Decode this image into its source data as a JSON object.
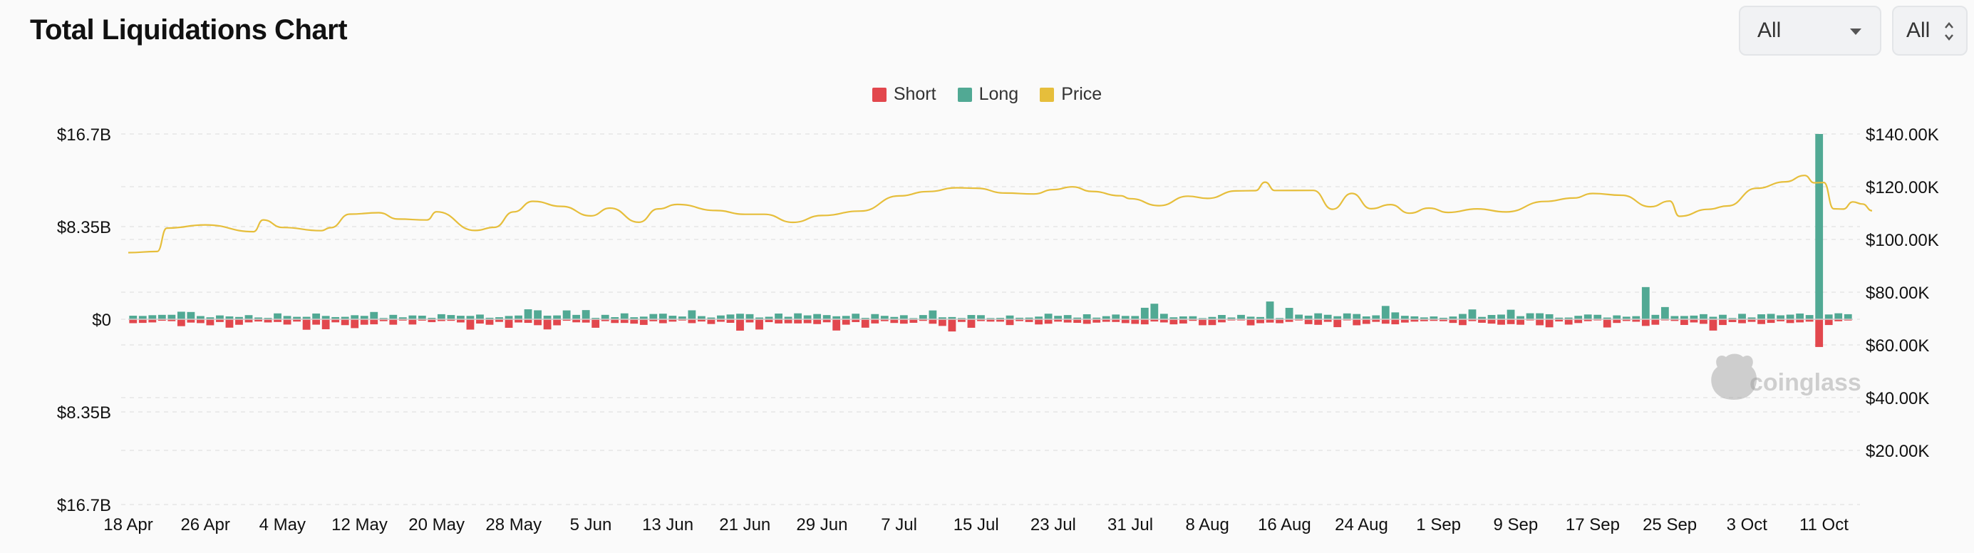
{
  "header": {
    "title": "Total Liquidations Chart",
    "select_exchange": "All",
    "select_range": "All"
  },
  "colors": {
    "short": "#e2474d",
    "long": "#51a994",
    "price": "#e6be3b",
    "grid": "#e6e6e6",
    "axis_text": "#111111"
  },
  "watermark": "coinglass",
  "chart_data": {
    "type": "bar",
    "title": "Total Liquidations Chart",
    "legend_position": "top-center",
    "grid": true,
    "series": [
      {
        "name": "Short",
        "color": "#e2474d",
        "axis": "left",
        "kind": "bar",
        "direction": "down"
      },
      {
        "name": "Long",
        "color": "#51a994",
        "axis": "left",
        "kind": "bar",
        "direction": "up"
      },
      {
        "name": "Price",
        "color": "#e6be3b",
        "axis": "right",
        "kind": "line"
      }
    ],
    "y_left": {
      "range": [
        -16.7,
        16.7
      ],
      "unit": "B",
      "ticks": [
        16.7,
        8.35,
        0,
        -8.35,
        -16.7
      ],
      "tick_labels": [
        "$16.7B",
        "$8.35B",
        "$0",
        "$8.35B",
        "$16.7B"
      ]
    },
    "y_right": {
      "range": [
        0,
        140000
      ],
      "ticks": [
        140000,
        120000,
        100000,
        80000,
        60000,
        40000,
        20000
      ],
      "tick_labels": [
        "$140.00K",
        "$120.00K",
        "$100.00K",
        "$80.00K",
        "$60.00K",
        "$40.00K",
        "$20.00K"
      ]
    },
    "x_tick_labels": [
      "18 Apr",
      "26 Apr",
      "4 May",
      "12 May",
      "20 May",
      "28 May",
      "5 Jun",
      "13 Jun",
      "21 Jun",
      "29 Jun",
      "7 Jul",
      "15 Jul",
      "23 Jul",
      "31 Jul",
      "8 Aug",
      "16 Aug",
      "24 Aug",
      "1 Sep",
      "9 Sep",
      "17 Sep",
      "25 Sep",
      "3 Oct",
      "11 Oct"
    ],
    "x_day_offsets": [
      0,
      8,
      16,
      24,
      32,
      40,
      48,
      56,
      64,
      72,
      80,
      88,
      96,
      104,
      112,
      120,
      128,
      136,
      144,
      152,
      160,
      168,
      176
    ],
    "total_days": 179,
    "notable_bars_billion": [
      {
        "date": "10 Oct",
        "long": 16.7,
        "short": 2.5
      },
      {
        "date": "22 Sep",
        "long": 2.9,
        "short": 0.6
      },
      {
        "date": "14 Aug",
        "long": 1.6,
        "short": 0.3
      },
      {
        "date": "2 Aug",
        "long": 1.4,
        "short": 0.2
      },
      {
        "date": "24 Sep",
        "long": 1.1,
        "short": 0.1
      },
      {
        "date": "12 Jul",
        "long": 0.2,
        "short": 1.1
      },
      {
        "date": "8 May",
        "long": 0.3,
        "short": 0.9
      },
      {
        "date": "26 Aug",
        "long": 1.2,
        "short": 0.4
      }
    ],
    "price": [
      {
        "day": 0,
        "v": 95000
      },
      {
        "day": 3,
        "v": 96000
      },
      {
        "day": 4,
        "v": 104000
      },
      {
        "day": 8,
        "v": 105000
      },
      {
        "day": 13,
        "v": 103000
      },
      {
        "day": 14,
        "v": 108000
      },
      {
        "day": 16,
        "v": 104000
      },
      {
        "day": 20,
        "v": 103000
      },
      {
        "day": 21,
        "v": 105000
      },
      {
        "day": 23,
        "v": 109000
      },
      {
        "day": 26,
        "v": 110000
      },
      {
        "day": 28,
        "v": 108000
      },
      {
        "day": 31,
        "v": 107000
      },
      {
        "day": 32,
        "v": 111000
      },
      {
        "day": 36,
        "v": 104000
      },
      {
        "day": 38,
        "v": 104000
      },
      {
        "day": 40,
        "v": 111000
      },
      {
        "day": 42,
        "v": 114000
      },
      {
        "day": 45,
        "v": 112000
      },
      {
        "day": 48,
        "v": 109000
      },
      {
        "day": 50,
        "v": 112000
      },
      {
        "day": 53,
        "v": 106000
      },
      {
        "day": 55,
        "v": 112000
      },
      {
        "day": 57,
        "v": 113000
      },
      {
        "day": 61,
        "v": 111000
      },
      {
        "day": 64,
        "v": 109000
      },
      {
        "day": 66,
        "v": 110000
      },
      {
        "day": 69,
        "v": 107000
      },
      {
        "day": 72,
        "v": 109000
      },
      {
        "day": 76,
        "v": 111000
      },
      {
        "day": 80,
        "v": 117000
      },
      {
        "day": 83,
        "v": 118000
      },
      {
        "day": 86,
        "v": 119000
      },
      {
        "day": 88,
        "v": 120000
      },
      {
        "day": 91,
        "v": 118000
      },
      {
        "day": 94,
        "v": 117000
      },
      {
        "day": 96,
        "v": 119000
      },
      {
        "day": 98,
        "v": 120000
      },
      {
        "day": 100,
        "v": 118000
      },
      {
        "day": 103,
        "v": 117000
      },
      {
        "day": 104,
        "v": 115000
      },
      {
        "day": 107,
        "v": 113000
      },
      {
        "day": 110,
        "v": 117000
      },
      {
        "day": 112,
        "v": 115000
      },
      {
        "day": 115,
        "v": 118000
      },
      {
        "day": 117,
        "v": 119000
      },
      {
        "day": 118,
        "v": 122000
      },
      {
        "day": 119,
        "v": 118000
      },
      {
        "day": 123,
        "v": 118000
      },
      {
        "day": 125,
        "v": 112000
      },
      {
        "day": 127,
        "v": 117000
      },
      {
        "day": 129,
        "v": 112000
      },
      {
        "day": 131,
        "v": 113000
      },
      {
        "day": 133,
        "v": 110000
      },
      {
        "day": 135,
        "v": 112000
      },
      {
        "day": 137,
        "v": 110000
      },
      {
        "day": 140,
        "v": 112000
      },
      {
        "day": 143,
        "v": 111000
      },
      {
        "day": 147,
        "v": 115000
      },
      {
        "day": 150,
        "v": 116000
      },
      {
        "day": 152,
        "v": 117000
      },
      {
        "day": 155,
        "v": 117000
      },
      {
        "day": 158,
        "v": 113000
      },
      {
        "day": 160,
        "v": 114000
      },
      {
        "day": 161,
        "v": 109000
      },
      {
        "day": 164,
        "v": 111000
      },
      {
        "day": 166,
        "v": 113000
      },
      {
        "day": 169,
        "v": 120000
      },
      {
        "day": 172,
        "v": 122000
      },
      {
        "day": 174,
        "v": 124000
      },
      {
        "day": 175,
        "v": 121000
      },
      {
        "day": 176,
        "v": 122000
      },
      {
        "day": 177,
        "v": 112000
      },
      {
        "day": 178,
        "v": 111000
      },
      {
        "day": 179,
        "v": 114000
      },
      {
        "day": 180,
        "v": 114000
      },
      {
        "day": 181,
        "v": 111000
      }
    ]
  }
}
